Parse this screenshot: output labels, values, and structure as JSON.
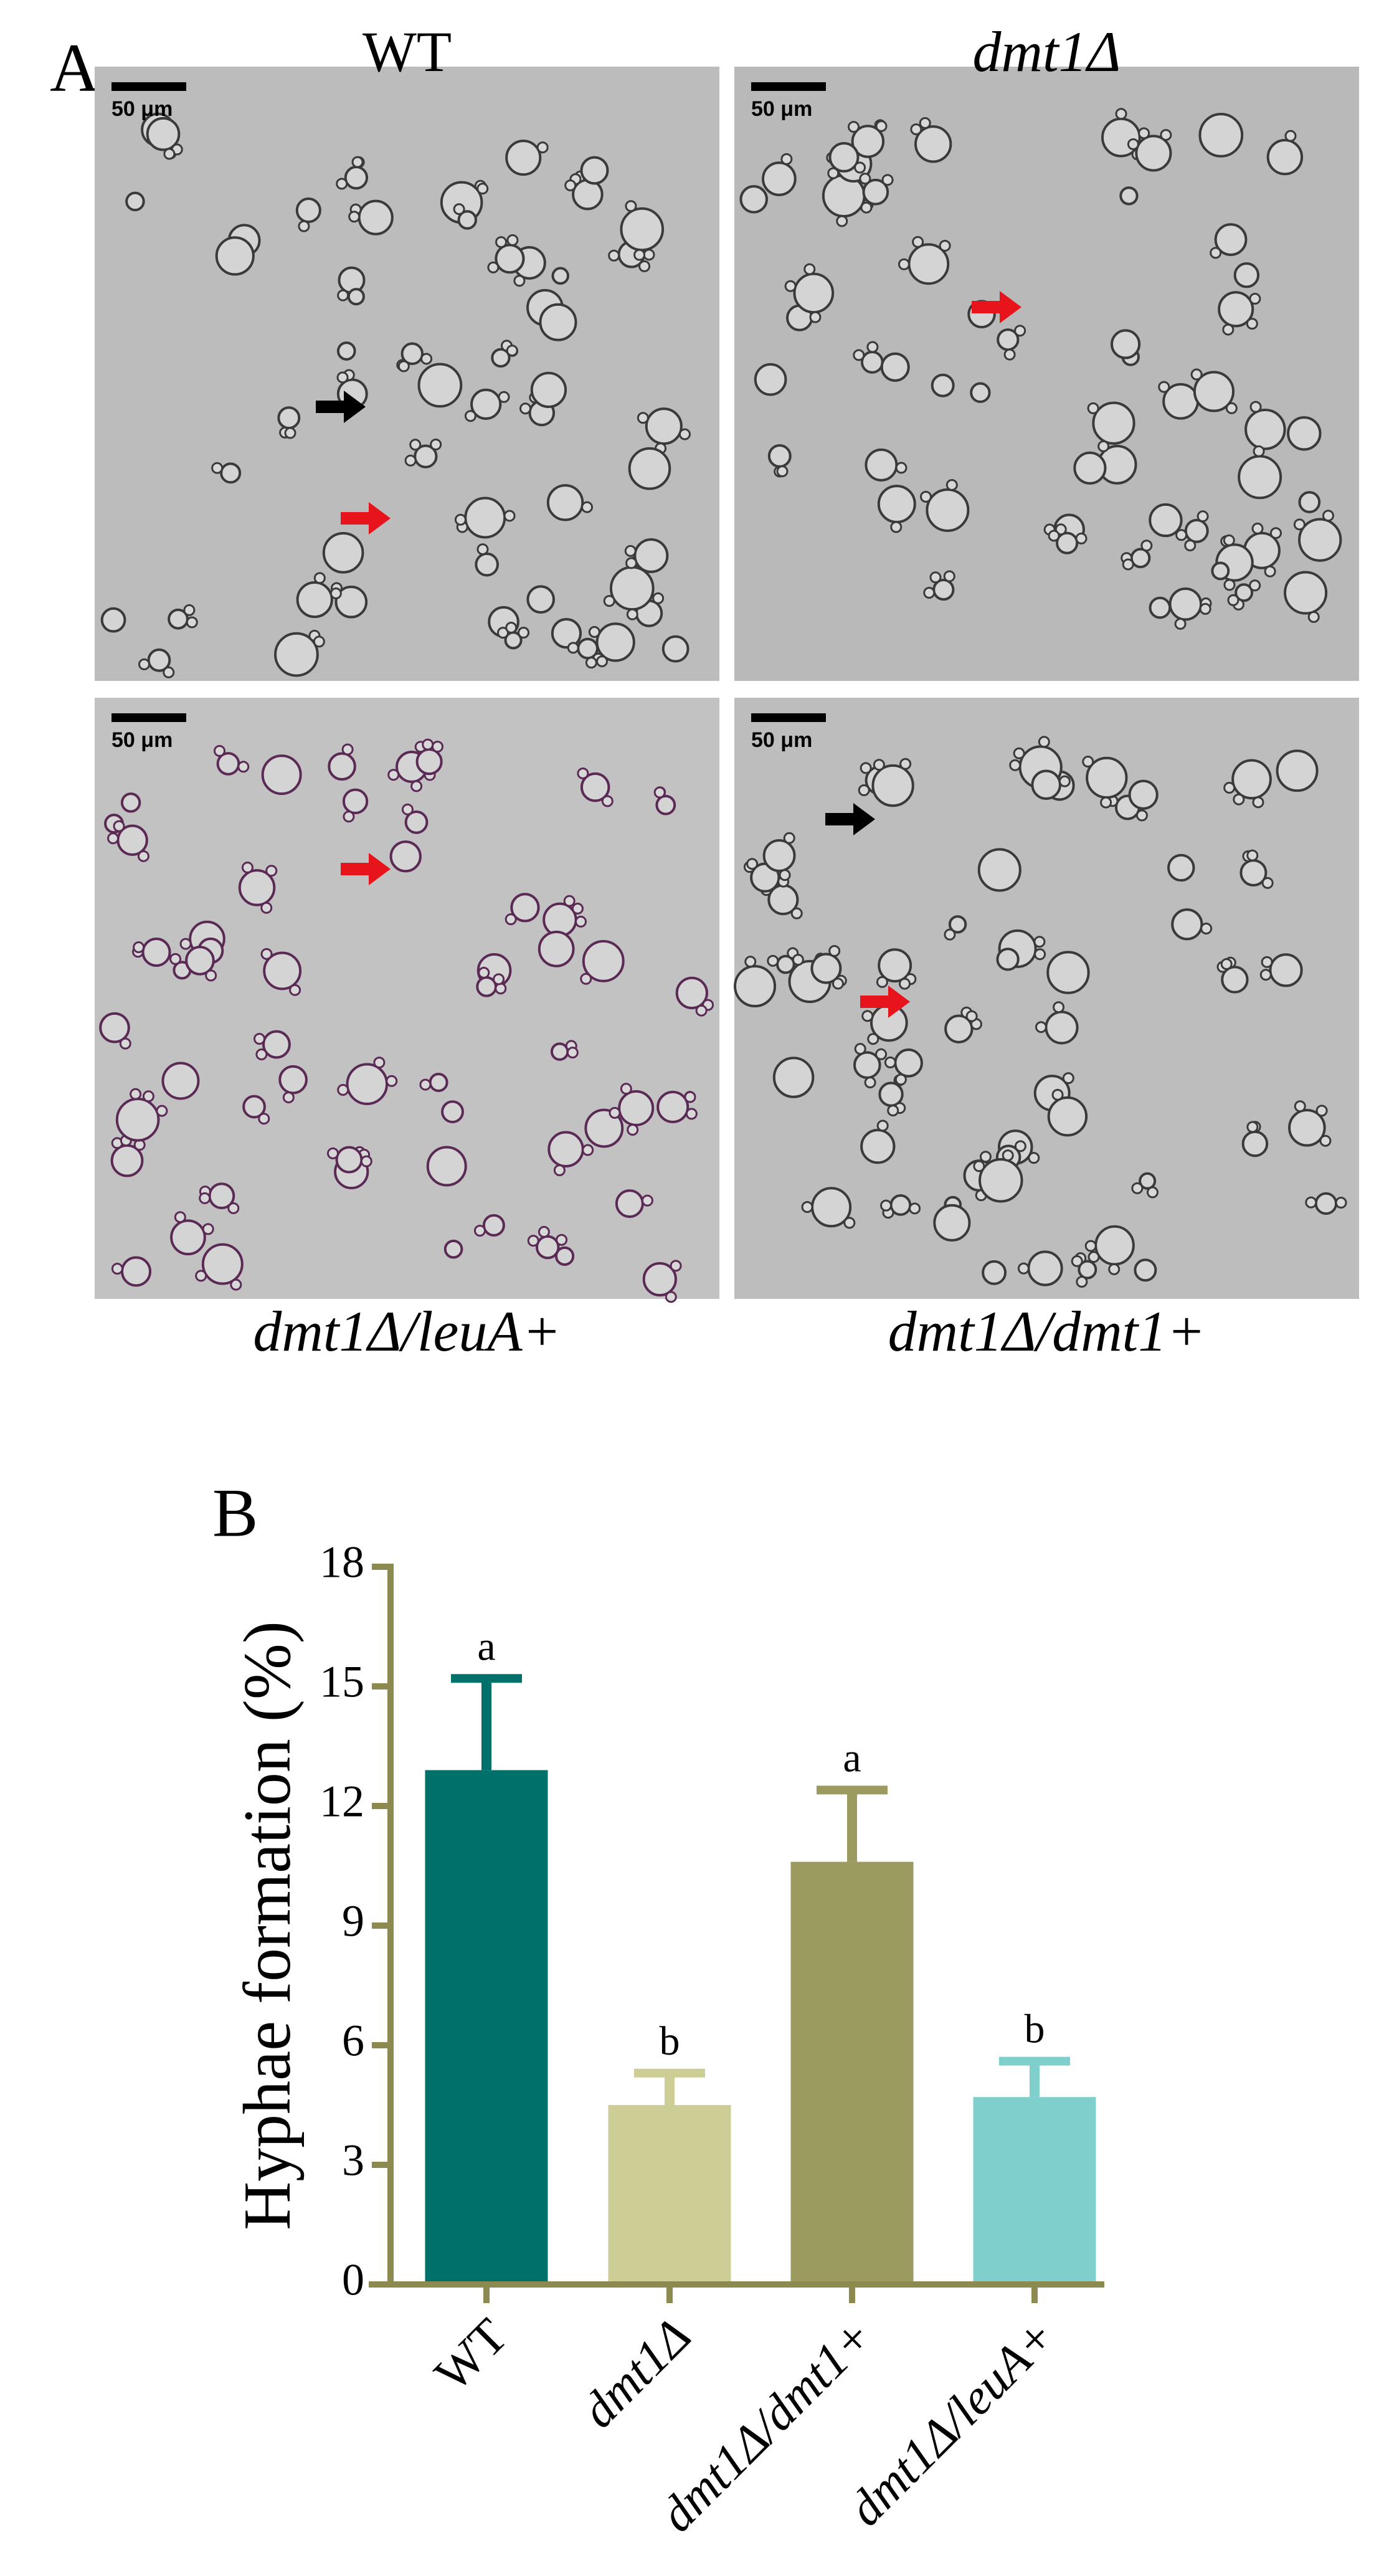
{
  "panel_a": {
    "label": "A",
    "micrographs": [
      {
        "title": "WT",
        "scale_bar": "50 μm"
      },
      {
        "title": "dmt1Δ",
        "scale_bar": "50 μm"
      },
      {
        "title": "dmt1Δ/leuA+",
        "scale_bar": "50 μm"
      },
      {
        "title": "dmt1Δ/dmt1+",
        "scale_bar": "50 μm"
      }
    ]
  },
  "panel_b": {
    "label": "B"
  },
  "chart_data": {
    "type": "bar",
    "ylabel": "Hyphae formation (%)",
    "categories": [
      "WT",
      "dmt1Δ",
      "dmt1Δ/dmt1+",
      "dmt1Δ/leuA+"
    ],
    "values": [
      12.9,
      4.5,
      10.6,
      4.7
    ],
    "errors": [
      2.3,
      0.8,
      1.8,
      0.9
    ],
    "annotations": [
      "a",
      "b",
      "a",
      "b"
    ],
    "colors": [
      "#00706a",
      "#cdcd96",
      "#9b9a5f",
      "#7fcfcd"
    ],
    "axis_color": "#8c8a4f",
    "ylim": [
      0,
      18
    ],
    "yticks": [
      0,
      3,
      6,
      9,
      12,
      15,
      18
    ]
  }
}
